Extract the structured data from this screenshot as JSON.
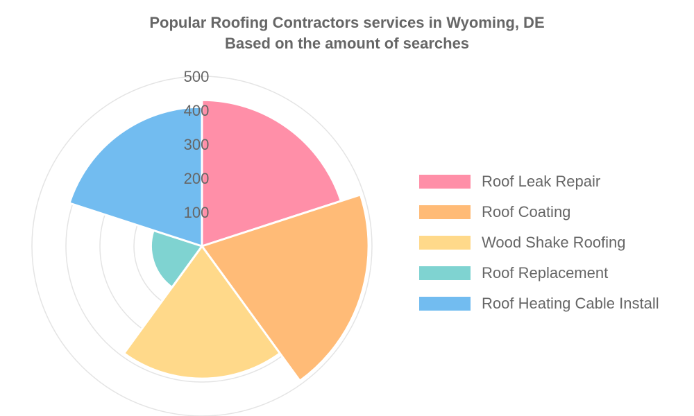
{
  "chart_data": {
    "type": "polarArea",
    "title": "Popular Roofing Contractors services in Wyoming, DE",
    "subtitle": "Based on the amount of searches",
    "categories": [
      "Roof Leak Repair",
      "Roof Coating",
      "Wood Shake Roofing",
      "Roof Replacement",
      "Roof Heating Cable Install"
    ],
    "values": [
      430,
      490,
      390,
      150,
      410
    ],
    "colors": [
      "#ff8fa8",
      "#ffbb77",
      "#ffd98a",
      "#7fd3d1",
      "#72bcf0"
    ],
    "radial_ticks": [
      "100",
      "200",
      "300",
      "400",
      "500"
    ],
    "rmax": 500,
    "grid": true,
    "legend_position": "right"
  }
}
